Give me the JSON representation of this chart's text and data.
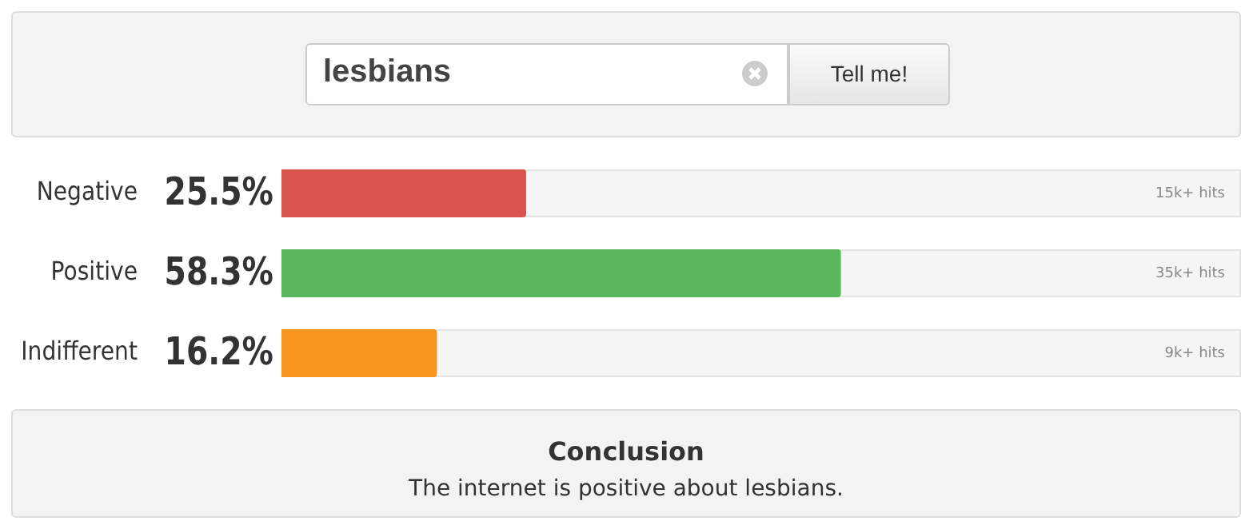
{
  "chart_data": {
    "type": "bar",
    "orientation": "horizontal",
    "categories": [
      "Negative",
      "Positive",
      "Indifferent"
    ],
    "values": [
      25.5,
      58.3,
      16.2
    ],
    "colors": [
      "#d9534f",
      "#5cb85c",
      "#f7961e"
    ],
    "value_labels": [
      "25.5%",
      "58.3%",
      "16.2%"
    ],
    "xlim": [
      0,
      100
    ],
    "annotations": [
      "15k+ hits",
      "35k+ hits",
      "9k+ hits",
      "lesbians",
      "Tell me!",
      "Conclusion",
      "The internet is positive about lesbians."
    ]
  }
}
